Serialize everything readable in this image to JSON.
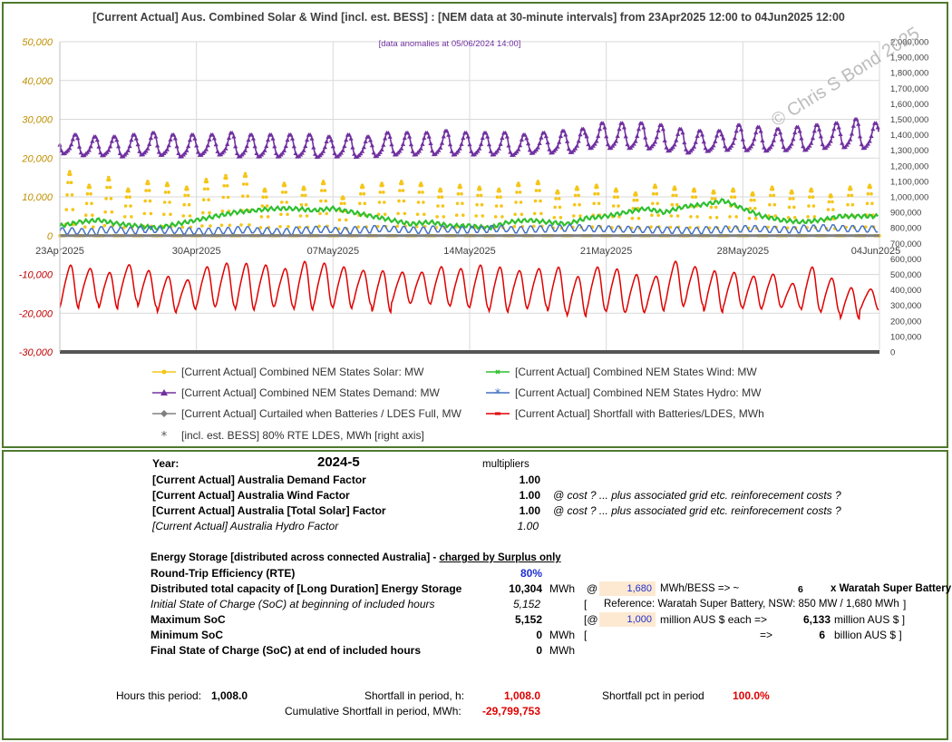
{
  "chart_data": {
    "type": "line",
    "title": "[Current Actual] Aus. Combined Solar & Wind [incl. est. BESS] :  [NEM data at 30-minute intervals] from 23Apr2025 12:00 to 04Jun2025 12:00",
    "annotation": "[data anomalies at 05/06/2024 14:00]",
    "watermark": "© Chris S Bond  2025",
    "x_ticks": [
      "23Apr2025",
      "30Apr2025",
      "07May2025",
      "14May2025",
      "21May2025",
      "28May2025",
      "04Jun2025"
    ],
    "x_range_days": [
      0,
      42
    ],
    "left_axis": {
      "ylim": [
        -30000,
        50000
      ],
      "ticks": [
        "-30,000",
        "-20,000",
        "-10,000",
        "0",
        "10,000",
        "20,000",
        "30,000",
        "40,000",
        "50,000"
      ],
      "tick_values": [
        -30000,
        -20000,
        -10000,
        0,
        10000,
        20000,
        30000,
        40000,
        50000
      ]
    },
    "right_axis": {
      "ylim": [
        0,
        2000000
      ],
      "ticks": [
        "0",
        "100,000",
        "200,000",
        "300,000",
        "400,000",
        "500,000",
        "600,000",
        "700,000",
        "800,000",
        "900,000",
        "1,000,000",
        "1,100,000",
        "1,200,000",
        "1,300,000",
        "1,400,000",
        "1,500,000",
        "1,600,000",
        "1,700,000",
        "1,800,000",
        "1,900,000",
        "2,000,000"
      ],
      "tick_values": [
        0,
        100000,
        200000,
        300000,
        400000,
        500000,
        600000,
        700000,
        800000,
        900000,
        1000000,
        1100000,
        1200000,
        1300000,
        1400000,
        1500000,
        1600000,
        1700000,
        1800000,
        1900000,
        2000000
      ]
    },
    "series": [
      {
        "name": "[Current Actual] Combined NEM States Solar: MW",
        "axis": "left",
        "color": "#f5c518",
        "marker": "circle",
        "daily_peak": [
          16500,
          13000,
          15000,
          12000,
          14000,
          13500,
          12500,
          14500,
          15500,
          16000,
          12000,
          13500,
          12500,
          14000,
          10000,
          13000,
          13500,
          14000,
          13500,
          12000,
          13000,
          12500,
          12000,
          13500,
          14000,
          11500,
          12500,
          13000,
          12000,
          11000,
          13000,
          12500,
          12000,
          11500,
          12000,
          11000,
          12500,
          11500,
          12000,
          10500,
          12500,
          13000
        ]
      },
      {
        "name": "[Current Actual] Combined NEM States Wind: MW",
        "axis": "left",
        "color": "#2fbf2f",
        "marker": "x",
        "daily_value": [
          2500,
          3500,
          4000,
          3000,
          2500,
          2000,
          3000,
          4000,
          5000,
          6000,
          6500,
          7000,
          7000,
          6500,
          7000,
          6000,
          5000,
          4000,
          3000,
          3500,
          2500,
          2500,
          2000,
          3500,
          4000,
          3500,
          3000,
          4500,
          5000,
          6000,
          7000,
          6000,
          7500,
          8000,
          9000,
          7000,
          5000,
          4000,
          3500,
          4000,
          5000,
          5000
        ]
      },
      {
        "name": "[Current Actual] Combined NEM States Demand: MW",
        "axis": "left",
        "color": "#7030a0",
        "marker": "triangle",
        "daily_peak": [
          26000,
          25500,
          25500,
          26000,
          26500,
          26000,
          26000,
          26000,
          26500,
          26000,
          26000,
          26000,
          26000,
          25500,
          26000,
          25500,
          26500,
          26500,
          26500,
          27000,
          26500,
          26500,
          26500,
          26000,
          26500,
          27000,
          27500,
          29000,
          29000,
          29000,
          28500,
          27500,
          27000,
          27000,
          28500,
          28000,
          27500,
          28000,
          28500,
          29000,
          30000,
          29000
        ],
        "daily_trough": [
          20000,
          19500,
          19500,
          19000,
          19500,
          19500,
          19000,
          19500,
          19500,
          19000,
          19000,
          19000,
          19000,
          19000,
          19000,
          19000,
          19000,
          19500,
          19500,
          19500,
          19500,
          19500,
          19500,
          19500,
          20000,
          20000,
          20000,
          21000,
          21000,
          21000,
          21000,
          20500,
          20000,
          20500,
          20500,
          20500,
          20500,
          20500,
          20500,
          21000,
          21000,
          21000
        ]
      },
      {
        "name": "[Current Actual] Combined NEM States Hydro: MW",
        "axis": "left",
        "color": "#4472c4",
        "marker": "asterisk",
        "daily_value": [
          1200,
          1000,
          1500,
          1300,
          1600,
          1400,
          1200,
          1100,
          1300,
          1500,
          1200,
          1000,
          1400,
          1600,
          1300,
          1500,
          1800,
          1600,
          1400,
          1700,
          1500,
          1600,
          1800,
          1500,
          1700,
          1900,
          2000,
          1800,
          1700,
          1600,
          1500,
          1400,
          1300,
          1500,
          1700,
          1800,
          1600,
          1500,
          1900,
          2000,
          1800,
          1700
        ]
      },
      {
        "name": "[Current Actual]  Curtailed when Batteries / LDES Full, MW",
        "axis": "left",
        "color": "#808080",
        "marker": "diamond",
        "constant": 0
      },
      {
        "name": "[Current Actual]  Shortfall with Batteries/LDES, MWh",
        "axis": "left",
        "color": "#e00000",
        "marker": "dash",
        "daily_high": [
          -7000,
          -8000,
          -9000,
          -7000,
          -8500,
          -10000,
          -11000,
          -7500,
          -6500,
          -6500,
          -7000,
          -8000,
          -6000,
          -6500,
          -7500,
          -8500,
          -8500,
          -9000,
          -9000,
          -7500,
          -8000,
          -7000,
          -7500,
          -8500,
          -8000,
          -7500,
          -10000,
          -7500,
          -8000,
          -9500,
          -10000,
          -6000,
          -7500,
          -8500,
          -9000,
          -10000,
          -9500,
          -12000,
          -7500,
          -10500,
          -13000,
          -13500
        ],
        "daily_low": [
          -19500,
          -18000,
          -19500,
          -17500,
          -19000,
          -20500,
          -19500,
          -19000,
          -19000,
          -20000,
          -19000,
          -19000,
          -20000,
          -19000,
          -19500,
          -18500,
          -20500,
          -18000,
          -18000,
          -18500,
          -19000,
          -19500,
          -20500,
          -19500,
          -19000,
          -20500,
          -21500,
          -20000,
          -20500,
          -20500,
          -20000,
          -19000,
          -18500,
          -20500,
          -19000,
          -19500,
          -19000,
          -19000,
          -20000,
          -20500,
          -22000,
          -19500
        ]
      },
      {
        "name": "[incl. est. BESS] 80% RTE LDES, MWh [right axis]",
        "axis": "right",
        "color": "#555555",
        "marker": "asterisk",
        "constant": 0
      }
    ]
  },
  "panel": {
    "year_label": "Year:",
    "year_value": "2024-5",
    "multipliers_label": "multipliers",
    "factors": [
      {
        "label": "[Current Actual]  Australia Demand Factor",
        "value": "1.00",
        "note": ""
      },
      {
        "label": "[Current Actual]  Australia Wind Factor",
        "value": "1.00",
        "note": "@ cost ?    ... plus associated grid etc. reinforecement costs ?"
      },
      {
        "label": "[Current Actual]  Australia [Total Solar] Factor",
        "value": "1.00",
        "note": "@ cost ?    ... plus associated grid etc. reinforecement costs ?"
      },
      {
        "label": "[Current Actual]  Australia Hydro Factor",
        "value": "1.00",
        "note": ""
      }
    ],
    "storage_heading": "Energy Storage [distributed across connected Australia] -",
    "storage_heading_u": "charged by Surplus only",
    "rte_label": "Round-Trip Efficiency (RTE)",
    "rte_value": "80%",
    "capacity_label": "Distributed total capacity of [Long Duration] Energy Storage",
    "capacity_value": "10,304",
    "capacity_unit": "MWh",
    "at_symbol": "@",
    "bess_input": "1,680",
    "bess_text": "MWh/BESS => ~",
    "bess_count": "6",
    "bess_suffix": "x Waratah Super Battery",
    "initial_soc_label": "Initial State of Charge (SoC) at beginning of included hours",
    "initial_soc_value": "5,152",
    "reference_bracket": "[",
    "reference_text": "Reference: Waratah Super Battery, NSW: 850 MW / 1,680 MWh",
    "reference_close": "]",
    "max_soc_label": "Maximum SoC",
    "max_soc_value": "5,152",
    "cost_prefix": "[@",
    "cost_input": "1,000",
    "cost_text": "million AUS $ each =>",
    "cost_total": "6,133",
    "cost_unit": "million AUS $ ]",
    "min_soc_label": "Minimum SoC",
    "min_soc_value": "0",
    "min_soc_unit": "MWh",
    "min_bracket": "[",
    "arrow": "=>",
    "billion_value": "6",
    "billion_unit": "billion AUS $ ]",
    "final_soc_label": "Final State of Charge (SoC) at end of included hours",
    "final_soc_value": "0",
    "final_soc_unit": "MWh",
    "hours_label": "Hours this period:",
    "hours_value": "1,008.0",
    "shortfall_h_label": "Shortfall in period, h:",
    "shortfall_h_value": "1,008.0",
    "shortfall_pct_label": "Shortfall pct in period",
    "shortfall_pct_value": "100.0%",
    "cum_label": "Cumulative Shortfall in period, MWh:",
    "cum_value": "-29,799,753"
  }
}
